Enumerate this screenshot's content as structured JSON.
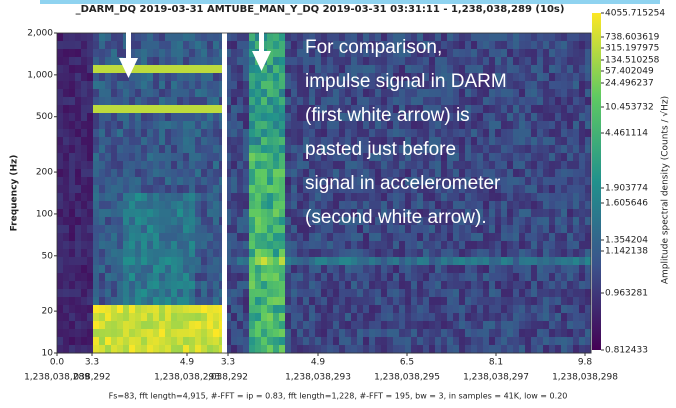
{
  "chart_data": {
    "type": "spectrogram",
    "title": "_DARM_DQ 2019-03-31 AMTUBE_MAN_Y_DQ 2019-03-31 03:31:11 - 1,238,038,289 (10s)",
    "ylabel": "Frequency (Hz)",
    "log_y": true,
    "ylim": [
      10,
      2000
    ],
    "yticks": [
      10,
      20,
      50,
      100,
      200,
      500,
      {
        "value": 1000,
        "label": "1,000"
      },
      {
        "value": 2000,
        "label": "2,000"
      }
    ],
    "xticks": [
      {
        "top": "0.0",
        "bottom": "1,238,038,289"
      },
      {
        "top": "3.3",
        "bottom": "038,292"
      },
      {
        "top": "4.9",
        "bottom": "1,238,038,293"
      },
      {
        "top": "3.3",
        "bottom": ",038,292"
      },
      {
        "top": "4.9",
        "bottom": "1,238,038,293"
      },
      {
        "top": "6.5",
        "bottom": "1,238,038,295"
      },
      {
        "top": "8.1",
        "bottom": "1,238,038,297"
      },
      {
        "top": "9.8",
        "bottom": "1,238,038,298"
      }
    ],
    "colorbar": {
      "label": "Amplitude spectral density (Counts / √Hz)",
      "ticks": [
        4055.715254,
        738.603619,
        315.197975,
        134.510258,
        57.402049,
        24.496237,
        10.453732,
        4.461114,
        1.903774,
        1.605646,
        1.354204,
        1.142138,
        0.963281,
        0.812433
      ]
    },
    "annotation": [
      "For comparison,",
      "impulse signal in DARM",
      "(first white arrow) is",
      "pasted just before",
      "signal in accelerometer",
      "(second white arrow)."
    ],
    "footer": "Fs=83, fft length=4,915, #-FFT = ip = 0.83, fft length=1,228, #-FFT = 195, bw = 3, in samples = 41K, low = 0.20"
  }
}
